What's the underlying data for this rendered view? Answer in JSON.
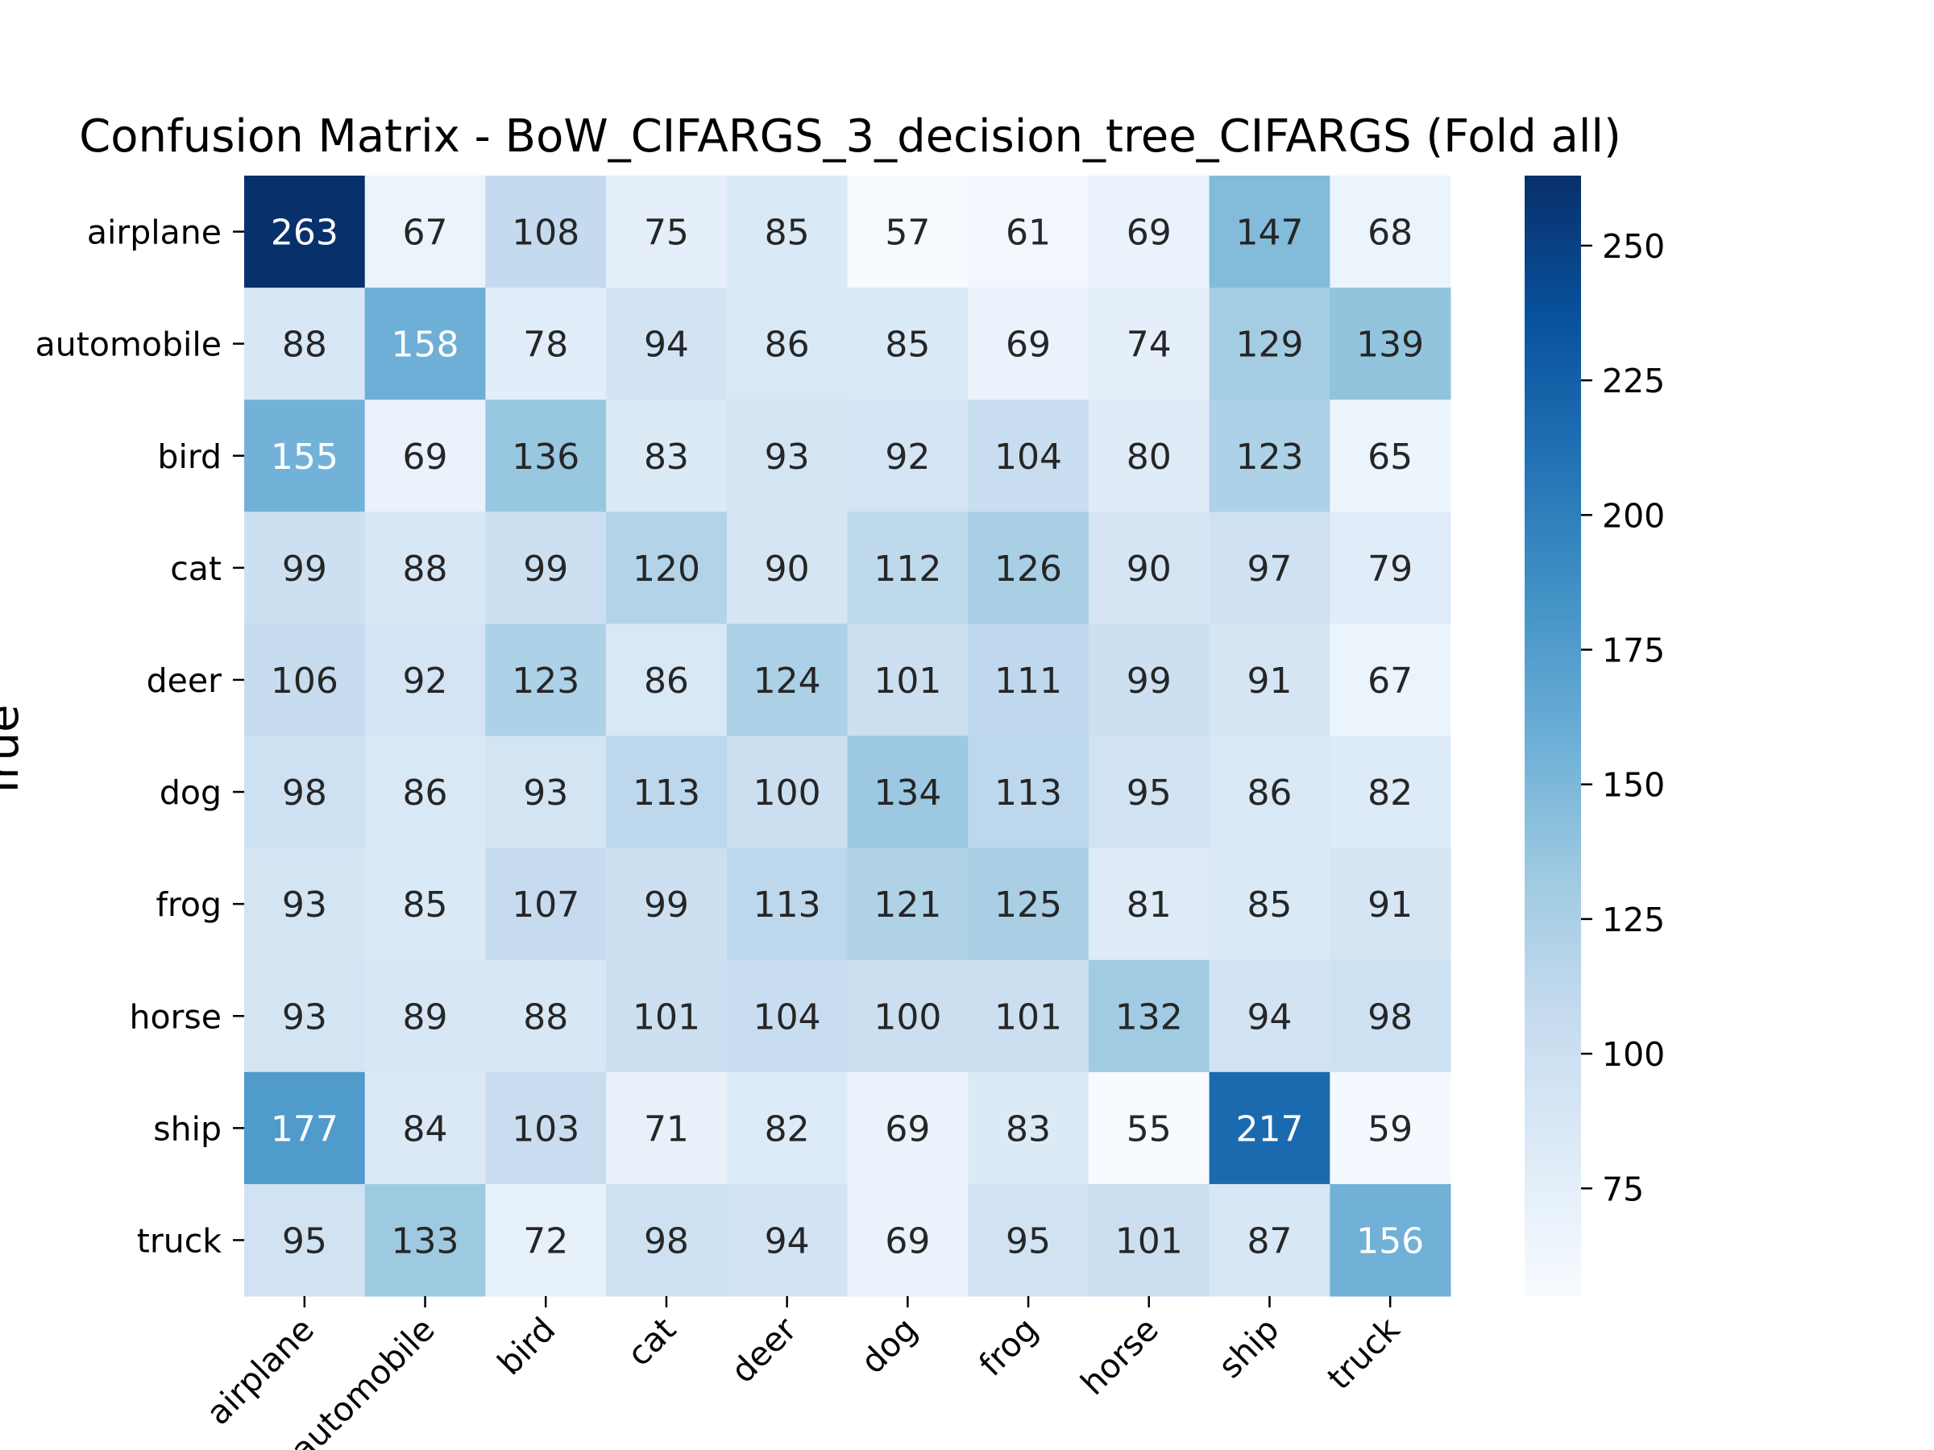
{
  "chart_data": {
    "type": "heatmap",
    "title": "Confusion Matrix - BoW_CIFARGS_3_decision_tree_CIFARGS (Fold all)",
    "ylabel": "True",
    "xlabel": "",
    "x_categories": [
      "airplane",
      "automobile",
      "bird",
      "cat",
      "deer",
      "dog",
      "frog",
      "horse",
      "ship",
      "truck"
    ],
    "y_categories": [
      "airplane",
      "automobile",
      "bird",
      "cat",
      "deer",
      "dog",
      "frog",
      "horse",
      "ship",
      "truck"
    ],
    "values": [
      [
        263,
        67,
        108,
        75,
        85,
        57,
        61,
        69,
        147,
        68
      ],
      [
        88,
        158,
        78,
        94,
        86,
        85,
        69,
        74,
        129,
        139
      ],
      [
        155,
        69,
        136,
        83,
        93,
        92,
        104,
        80,
        123,
        65
      ],
      [
        99,
        88,
        99,
        120,
        90,
        112,
        126,
        90,
        97,
        79
      ],
      [
        106,
        92,
        123,
        86,
        124,
        101,
        111,
        99,
        91,
        67
      ],
      [
        98,
        86,
        93,
        113,
        100,
        134,
        113,
        95,
        86,
        82
      ],
      [
        93,
        85,
        107,
        99,
        113,
        121,
        125,
        81,
        85,
        91
      ],
      [
        93,
        89,
        88,
        101,
        104,
        100,
        101,
        132,
        94,
        98
      ],
      [
        177,
        84,
        103,
        71,
        82,
        69,
        83,
        55,
        217,
        59
      ],
      [
        95,
        133,
        72,
        98,
        94,
        69,
        95,
        101,
        87,
        156
      ]
    ],
    "colormap": "Blues",
    "color_range": [
      55,
      263
    ],
    "colorbar_ticks": [
      "75",
      "100",
      "125",
      "150",
      "175",
      "200",
      "225",
      "250"
    ],
    "colorbar_tick_values": [
      75,
      100,
      125,
      150,
      175,
      200,
      225,
      250
    ]
  }
}
